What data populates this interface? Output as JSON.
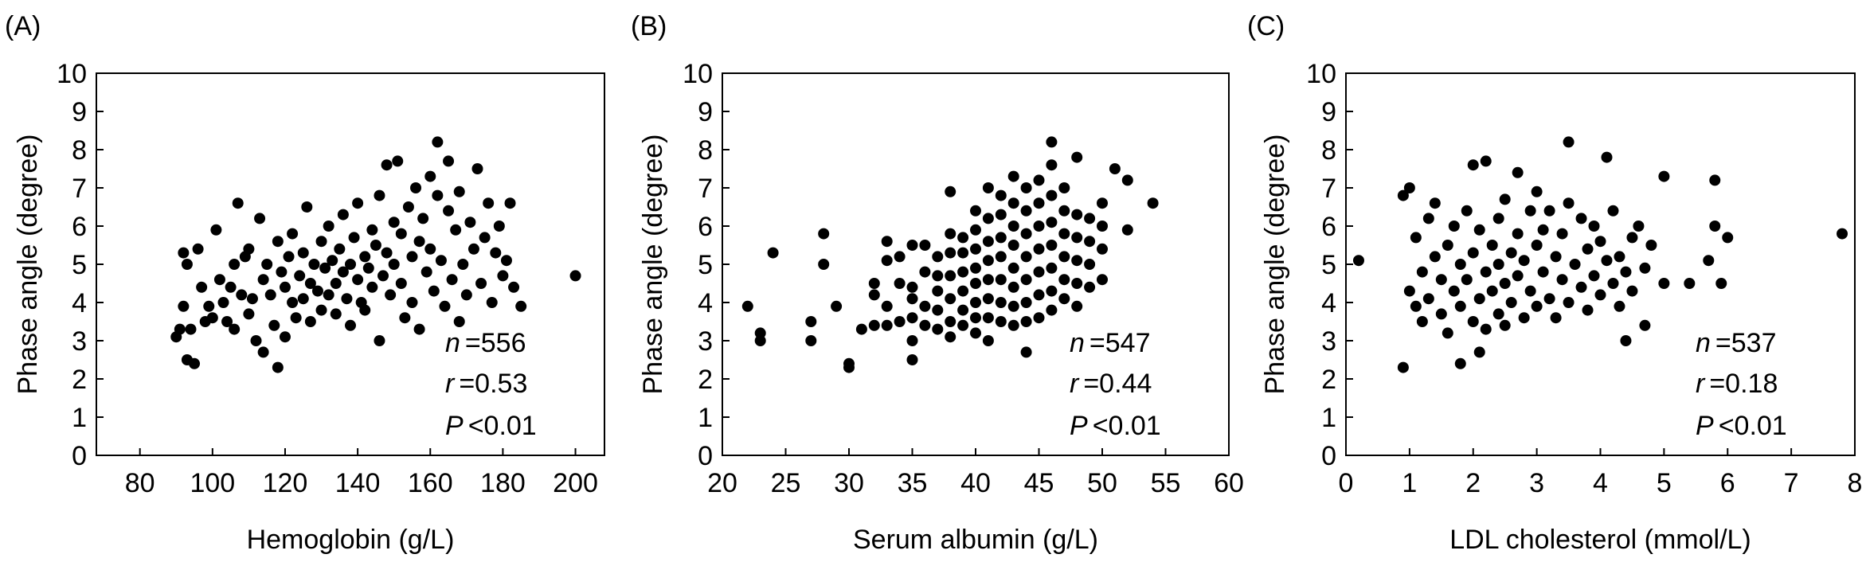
{
  "chart_data": [
    {
      "type": "scatter",
      "panel_label": "(A)",
      "xlabel": "Hemoglobin (g/L)",
      "ylabel": "Phase angle (degree)",
      "xlim": [
        68,
        208
      ],
      "ylim": [
        0,
        10
      ],
      "xticks": [
        "80",
        "100",
        "120",
        "140",
        "160",
        "180",
        "200"
      ],
      "yticks": [
        "0",
        "1",
        "2",
        "3",
        "4",
        "5",
        "6",
        "7",
        "8",
        "9",
        "10"
      ],
      "grid": false,
      "stats": {
        "n_label": "n",
        "n_value": "=556",
        "r_label": "r",
        "r_value": "=0.53",
        "p_label": "P",
        "p_value": "<0.01"
      },
      "points": [
        [
          90,
          3.1
        ],
        [
          91,
          3.3
        ],
        [
          92,
          3.9
        ],
        [
          92,
          5.3
        ],
        [
          93,
          2.5
        ],
        [
          93,
          5.0
        ],
        [
          94,
          3.3
        ],
        [
          95,
          2.4
        ],
        [
          96,
          5.4
        ],
        [
          97,
          4.4
        ],
        [
          98,
          3.5
        ],
        [
          99,
          3.9
        ],
        [
          100,
          3.6
        ],
        [
          101,
          5.9
        ],
        [
          102,
          4.6
        ],
        [
          103,
          4.0
        ],
        [
          104,
          3.5
        ],
        [
          105,
          4.4
        ],
        [
          106,
          5.0
        ],
        [
          106,
          3.3
        ],
        [
          107,
          6.6
        ],
        [
          108,
          4.2
        ],
        [
          109,
          5.2
        ],
        [
          110,
          3.7
        ],
        [
          110,
          5.4
        ],
        [
          111,
          4.1
        ],
        [
          112,
          3.0
        ],
        [
          113,
          6.2
        ],
        [
          114,
          4.6
        ],
        [
          114,
          2.7
        ],
        [
          115,
          5.0
        ],
        [
          116,
          4.2
        ],
        [
          117,
          3.4
        ],
        [
          118,
          2.3
        ],
        [
          118,
          5.6
        ],
        [
          119,
          4.8
        ],
        [
          120,
          3.1
        ],
        [
          120,
          4.4
        ],
        [
          121,
          5.2
        ],
        [
          122,
          4.0
        ],
        [
          122,
          5.8
        ],
        [
          123,
          3.6
        ],
        [
          124,
          4.7
        ],
        [
          125,
          5.3
        ],
        [
          125,
          4.1
        ],
        [
          126,
          6.5
        ],
        [
          127,
          4.5
        ],
        [
          127,
          3.5
        ],
        [
          128,
          5.0
        ],
        [
          129,
          4.3
        ],
        [
          130,
          5.6
        ],
        [
          130,
          3.8
        ],
        [
          131,
          4.9
        ],
        [
          132,
          4.2
        ],
        [
          132,
          6.0
        ],
        [
          133,
          5.1
        ],
        [
          134,
          4.5
        ],
        [
          134,
          3.7
        ],
        [
          135,
          5.4
        ],
        [
          136,
          4.8
        ],
        [
          136,
          6.3
        ],
        [
          137,
          4.1
        ],
        [
          138,
          5.0
        ],
        [
          138,
          3.4
        ],
        [
          139,
          5.7
        ],
        [
          140,
          4.6
        ],
        [
          140,
          6.6
        ],
        [
          141,
          4.0
        ],
        [
          142,
          5.2
        ],
        [
          142,
          3.8
        ],
        [
          143,
          4.9
        ],
        [
          144,
          5.9
        ],
        [
          144,
          4.4
        ],
        [
          145,
          5.5
        ],
        [
          146,
          3.0
        ],
        [
          146,
          6.8
        ],
        [
          147,
          4.7
        ],
        [
          148,
          5.3
        ],
        [
          148,
          7.6
        ],
        [
          149,
          4.2
        ],
        [
          150,
          6.1
        ],
        [
          150,
          5.0
        ],
        [
          151,
          7.7
        ],
        [
          152,
          4.5
        ],
        [
          152,
          5.8
        ],
        [
          153,
          3.6
        ],
        [
          154,
          6.5
        ],
        [
          155,
          5.2
        ],
        [
          155,
          4.0
        ],
        [
          156,
          7.0
        ],
        [
          157,
          5.6
        ],
        [
          157,
          3.3
        ],
        [
          158,
          6.2
        ],
        [
          159,
          4.8
        ],
        [
          160,
          7.3
        ],
        [
          160,
          5.4
        ],
        [
          161,
          4.3
        ],
        [
          162,
          8.2
        ],
        [
          162,
          6.8
        ],
        [
          163,
          5.1
        ],
        [
          164,
          3.9
        ],
        [
          165,
          6.4
        ],
        [
          165,
          7.7
        ],
        [
          166,
          4.6
        ],
        [
          167,
          5.9
        ],
        [
          168,
          3.5
        ],
        [
          168,
          6.9
        ],
        [
          169,
          5.0
        ],
        [
          170,
          4.2
        ],
        [
          171,
          6.1
        ],
        [
          172,
          5.4
        ],
        [
          173,
          7.5
        ],
        [
          174,
          4.5
        ],
        [
          175,
          5.7
        ],
        [
          176,
          6.6
        ],
        [
          177,
          4.0
        ],
        [
          178,
          5.3
        ],
        [
          179,
          6.0
        ],
        [
          180,
          4.7
        ],
        [
          181,
          5.1
        ],
        [
          182,
          6.6
        ],
        [
          183,
          4.4
        ],
        [
          185,
          3.9
        ],
        [
          200,
          4.7
        ]
      ]
    },
    {
      "type": "scatter",
      "panel_label": "(B)",
      "xlabel": "Serum albumin (g/L)",
      "ylabel": "Phase angle (degree)",
      "xlim": [
        20,
        60
      ],
      "ylim": [
        0,
        10
      ],
      "xticks": [
        "20",
        "25",
        "30",
        "35",
        "40",
        "45",
        "50",
        "55",
        "60"
      ],
      "yticks": [
        "0",
        "1",
        "2",
        "3",
        "4",
        "5",
        "6",
        "7",
        "8",
        "9",
        "10"
      ],
      "grid": false,
      "stats": {
        "n_label": "n",
        "n_value": "=547",
        "r_label": "r",
        "r_value": "=0.44",
        "p_label": "P",
        "p_value": "<0.01"
      },
      "points": [
        [
          22,
          3.9
        ],
        [
          23,
          3.0
        ],
        [
          23,
          3.2
        ],
        [
          24,
          5.3
        ],
        [
          27,
          3.0
        ],
        [
          27,
          3.5
        ],
        [
          28,
          5.0
        ],
        [
          28,
          5.8
        ],
        [
          29,
          3.9
        ],
        [
          30,
          2.3
        ],
        [
          30,
          2.4
        ],
        [
          31,
          3.3
        ],
        [
          32,
          3.4
        ],
        [
          32,
          4.2
        ],
        [
          32,
          4.5
        ],
        [
          33,
          3.4
        ],
        [
          33,
          3.9
        ],
        [
          33,
          5.1
        ],
        [
          33,
          5.6
        ],
        [
          34,
          3.5
        ],
        [
          34,
          4.5
        ],
        [
          34,
          5.2
        ],
        [
          35,
          2.5
        ],
        [
          35,
          3.0
        ],
        [
          35,
          3.6
        ],
        [
          35,
          4.1
        ],
        [
          35,
          4.4
        ],
        [
          35,
          5.5
        ],
        [
          36,
          3.4
        ],
        [
          36,
          3.9
        ],
        [
          36,
          4.8
        ],
        [
          36,
          5.5
        ],
        [
          37,
          3.3
        ],
        [
          37,
          3.8
        ],
        [
          37,
          4.3
        ],
        [
          37,
          4.7
        ],
        [
          37,
          5.2
        ],
        [
          38,
          3.1
        ],
        [
          38,
          3.5
        ],
        [
          38,
          4.1
        ],
        [
          38,
          4.7
        ],
        [
          38,
          5.3
        ],
        [
          38,
          5.8
        ],
        [
          38,
          6.9
        ],
        [
          39,
          3.4
        ],
        [
          39,
          3.8
        ],
        [
          39,
          4.3
        ],
        [
          39,
          4.8
        ],
        [
          39,
          5.3
        ],
        [
          39,
          5.7
        ],
        [
          40,
          3.2
        ],
        [
          40,
          3.6
        ],
        [
          40,
          4.0
        ],
        [
          40,
          4.5
        ],
        [
          40,
          4.9
        ],
        [
          40,
          5.4
        ],
        [
          40,
          5.9
        ],
        [
          40,
          6.4
        ],
        [
          41,
          3.0
        ],
        [
          41,
          3.6
        ],
        [
          41,
          4.1
        ],
        [
          41,
          4.6
        ],
        [
          41,
          5.1
        ],
        [
          41,
          5.6
        ],
        [
          41,
          6.2
        ],
        [
          41,
          7.0
        ],
        [
          42,
          3.5
        ],
        [
          42,
          4.0
        ],
        [
          42,
          4.6
        ],
        [
          42,
          5.2
        ],
        [
          42,
          5.7
        ],
        [
          42,
          6.3
        ],
        [
          42,
          6.8
        ],
        [
          43,
          3.4
        ],
        [
          43,
          3.9
        ],
        [
          43,
          4.4
        ],
        [
          43,
          4.9
        ],
        [
          43,
          5.5
        ],
        [
          43,
          6.0
        ],
        [
          43,
          6.6
        ],
        [
          43,
          7.3
        ],
        [
          44,
          2.7
        ],
        [
          44,
          3.5
        ],
        [
          44,
          4.0
        ],
        [
          44,
          4.6
        ],
        [
          44,
          5.2
        ],
        [
          44,
          5.8
        ],
        [
          44,
          6.4
        ],
        [
          44,
          7.0
        ],
        [
          45,
          3.6
        ],
        [
          45,
          4.2
        ],
        [
          45,
          4.8
        ],
        [
          45,
          5.4
        ],
        [
          45,
          6.0
        ],
        [
          45,
          6.6
        ],
        [
          45,
          7.2
        ],
        [
          46,
          3.8
        ],
        [
          46,
          4.3
        ],
        [
          46,
          4.9
        ],
        [
          46,
          5.5
        ],
        [
          46,
          6.1
        ],
        [
          46,
          6.8
        ],
        [
          46,
          7.6
        ],
        [
          46,
          8.2
        ],
        [
          47,
          4.1
        ],
        [
          47,
          4.6
        ],
        [
          47,
          5.2
        ],
        [
          47,
          5.8
        ],
        [
          47,
          6.4
        ],
        [
          47,
          7.0
        ],
        [
          48,
          3.9
        ],
        [
          48,
          4.5
        ],
        [
          48,
          5.1
        ],
        [
          48,
          5.7
        ],
        [
          48,
          6.3
        ],
        [
          48,
          7.8
        ],
        [
          49,
          4.4
        ],
        [
          49,
          5.0
        ],
        [
          49,
          5.6
        ],
        [
          49,
          6.2
        ],
        [
          50,
          4.6
        ],
        [
          50,
          5.4
        ],
        [
          50,
          6.0
        ],
        [
          50,
          6.6
        ],
        [
          51,
          7.5
        ],
        [
          52,
          5.9
        ],
        [
          52,
          7.2
        ],
        [
          54,
          6.6
        ]
      ]
    },
    {
      "type": "scatter",
      "panel_label": "(C)",
      "xlabel": "LDL cholesterol (mmol/L)",
      "ylabel": "Phase angle (degree)",
      "xlim": [
        0,
        8
      ],
      "ylim": [
        0,
        10
      ],
      "xticks": [
        "0",
        "1",
        "2",
        "3",
        "4",
        "5",
        "6",
        "7",
        "8"
      ],
      "yticks": [
        "0",
        "1",
        "2",
        "3",
        "4",
        "5",
        "6",
        "7",
        "8",
        "9",
        "10"
      ],
      "grid": false,
      "stats": {
        "n_label": "n",
        "n_value": "=537",
        "r_label": "r",
        "r_value": "=0.18",
        "p_label": "P",
        "p_value": "<0.01"
      },
      "points": [
        [
          0.2,
          5.1
        ],
        [
          0.9,
          2.3
        ],
        [
          0.9,
          6.8
        ],
        [
          1.0,
          4.3
        ],
        [
          1.0,
          7.0
        ],
        [
          1.1,
          3.9
        ],
        [
          1.1,
          5.7
        ],
        [
          1.2,
          3.5
        ],
        [
          1.2,
          4.8
        ],
        [
          1.3,
          6.2
        ],
        [
          1.3,
          4.1
        ],
        [
          1.4,
          5.2
        ],
        [
          1.4,
          6.6
        ],
        [
          1.5,
          3.7
        ],
        [
          1.5,
          4.6
        ],
        [
          1.6,
          5.5
        ],
        [
          1.6,
          3.2
        ],
        [
          1.7,
          4.3
        ],
        [
          1.7,
          6.0
        ],
        [
          1.8,
          3.9
        ],
        [
          1.8,
          5.0
        ],
        [
          1.8,
          2.4
        ],
        [
          1.9,
          4.6
        ],
        [
          1.9,
          6.4
        ],
        [
          2.0,
          3.5
        ],
        [
          2.0,
          5.3
        ],
        [
          2.0,
          7.6
        ],
        [
          2.1,
          4.1
        ],
        [
          2.1,
          5.9
        ],
        [
          2.1,
          2.7
        ],
        [
          2.2,
          4.8
        ],
        [
          2.2,
          3.3
        ],
        [
          2.2,
          7.7
        ],
        [
          2.3,
          5.5
        ],
        [
          2.3,
          4.3
        ],
        [
          2.4,
          6.2
        ],
        [
          2.4,
          3.7
        ],
        [
          2.4,
          5.0
        ],
        [
          2.5,
          4.5
        ],
        [
          2.5,
          6.7
        ],
        [
          2.5,
          3.4
        ],
        [
          2.6,
          5.3
        ],
        [
          2.6,
          4.0
        ],
        [
          2.7,
          5.8
        ],
        [
          2.7,
          4.7
        ],
        [
          2.7,
          7.4
        ],
        [
          2.8,
          3.6
        ],
        [
          2.8,
          5.1
        ],
        [
          2.9,
          6.4
        ],
        [
          2.9,
          4.3
        ],
        [
          3.0,
          5.5
        ],
        [
          3.0,
          3.9
        ],
        [
          3.0,
          6.9
        ],
        [
          3.1,
          4.8
        ],
        [
          3.1,
          5.9
        ],
        [
          3.2,
          4.1
        ],
        [
          3.2,
          6.4
        ],
        [
          3.3,
          5.2
        ],
        [
          3.3,
          3.6
        ],
        [
          3.4,
          4.6
        ],
        [
          3.4,
          5.8
        ],
        [
          3.5,
          4.0
        ],
        [
          3.5,
          6.6
        ],
        [
          3.5,
          8.2
        ],
        [
          3.6,
          5.0
        ],
        [
          3.7,
          4.4
        ],
        [
          3.7,
          6.2
        ],
        [
          3.8,
          3.8
        ],
        [
          3.8,
          5.4
        ],
        [
          3.9,
          4.7
        ],
        [
          3.9,
          6.0
        ],
        [
          4.0,
          4.2
        ],
        [
          4.0,
          5.6
        ],
        [
          4.1,
          7.8
        ],
        [
          4.1,
          5.1
        ],
        [
          4.2,
          4.5
        ],
        [
          4.2,
          6.4
        ],
        [
          4.3,
          3.9
        ],
        [
          4.3,
          5.2
        ],
        [
          4.4,
          4.8
        ],
        [
          4.4,
          3.0
        ],
        [
          4.5,
          5.7
        ],
        [
          4.5,
          4.3
        ],
        [
          4.6,
          6.0
        ],
        [
          4.7,
          3.4
        ],
        [
          4.7,
          4.9
        ],
        [
          4.8,
          5.5
        ],
        [
          5.0,
          7.3
        ],
        [
          5.0,
          4.5
        ],
        [
          5.4,
          4.5
        ],
        [
          5.7,
          5.1
        ],
        [
          5.8,
          7.2
        ],
        [
          5.8,
          6.0
        ],
        [
          5.9,
          4.5
        ],
        [
          6.0,
          5.7
        ],
        [
          7.8,
          5.8
        ]
      ]
    }
  ]
}
